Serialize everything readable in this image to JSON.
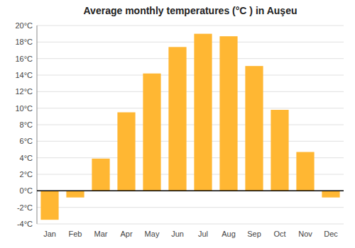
{
  "chart_data": {
    "type": "bar",
    "title": "Average monthly temperatures (°C ) in Auşeu",
    "categories": [
      "Jan",
      "Feb",
      "Mar",
      "Apr",
      "May",
      "Jun",
      "Jul",
      "Aug",
      "Sep",
      "Oct",
      "Nov",
      "Dec"
    ],
    "values": [
      -3.5,
      -0.8,
      3.9,
      9.5,
      14.2,
      17.4,
      19.0,
      18.7,
      15.1,
      9.8,
      4.7,
      -0.8
    ],
    "color": "#FFB733",
    "ylim": [
      -4,
      20
    ],
    "yticks": [
      {
        "value": -4,
        "label": "-4°C"
      },
      {
        "value": -2,
        "label": "-2°C"
      },
      {
        "value": 0,
        "label": "0°C"
      },
      {
        "value": 2,
        "label": "2°C"
      },
      {
        "value": 4,
        "label": "4°C"
      },
      {
        "value": 6,
        "label": "6°C"
      },
      {
        "value": 8,
        "label": "8°C"
      },
      {
        "value": 10,
        "label": "10°C"
      },
      {
        "value": 12,
        "label": "12°C"
      },
      {
        "value": 14,
        "label": "14°C"
      },
      {
        "value": 16,
        "label": "16°C"
      },
      {
        "value": 18,
        "label": "18°C"
      },
      {
        "value": 20,
        "label": "20°C"
      }
    ],
    "grid": true
  }
}
